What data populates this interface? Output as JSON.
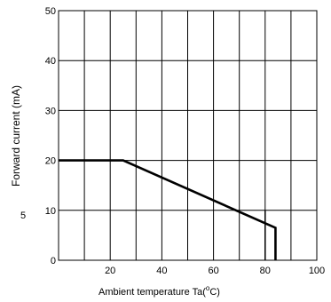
{
  "chart_data": {
    "type": "line",
    "title": "",
    "xlabel": "Ambient temperature Ta(°C)",
    "xlabel_prefix": "Ambient temperature Ta(",
    "xlabel_unit_degree": "o",
    "xlabel_unit_letter": "C)",
    "ylabel": "Forward current (mA)",
    "xlim": [
      0,
      100
    ],
    "ylim": [
      0,
      50
    ],
    "x_ticks": [
      20,
      40,
      60,
      80,
      100
    ],
    "y_ticks": [
      0,
      10,
      20,
      30,
      40,
      50
    ],
    "stray_label": "5",
    "grid": {
      "vertical_step": 10,
      "horizontal_step": 10
    },
    "series": [
      {
        "x": [
          0,
          25,
          84,
          84
        ],
        "y": [
          20,
          20,
          6.5,
          0
        ]
      }
    ],
    "reference_line": {
      "x": 80,
      "y0": 0,
      "y1": 10
    }
  }
}
